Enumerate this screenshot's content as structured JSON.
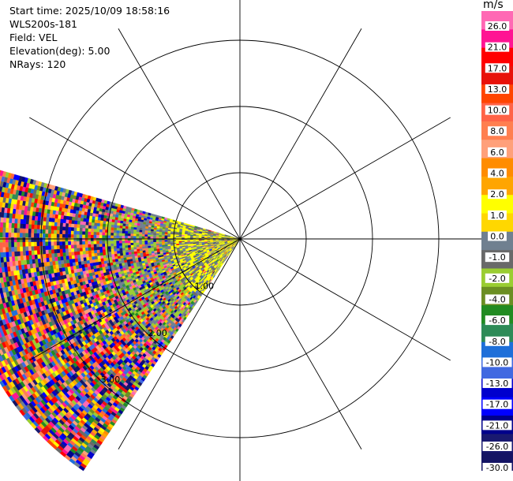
{
  "info": {
    "start_time": "Start time: 2025/10/09 18:58:16",
    "instrument": "WLS200s-181",
    "field": "Field: VEL",
    "elevation": "Elevation(deg): 5.00",
    "nrays": "NRays: 120"
  },
  "chart_data": {
    "type": "heatmap",
    "title": "",
    "projection": "polar-ppi",
    "field": "VEL",
    "units": "m/s",
    "range_ring_labels": [
      "1.00",
      "2.00",
      "3.00"
    ],
    "azimuth_spokes_deg": [
      0,
      30,
      60,
      90,
      120,
      150,
      180,
      210,
      240,
      270,
      300,
      330
    ],
    "sector_azimuth_deg": [
      214,
      286
    ],
    "colorbar": {
      "unit": "m/s",
      "tick_labels": [
        "26.0",
        "21.0",
        "17.0",
        "13.0",
        "10.0",
        "8.0",
        "6.0",
        "4.0",
        "2.0",
        "1.0",
        "0.0",
        "-1.0",
        "-2.0",
        "-4.0",
        "-6.0",
        "-8.0",
        "-10.0",
        "-13.0",
        "-17.0",
        "-21.0",
        "-26.0",
        "-30.0"
      ],
      "colors": [
        "#ff69b4",
        "#ff1493",
        "#ff0000",
        "#e8120a",
        "#ff4500",
        "#ff6347",
        "#ff7f50",
        "#ffa07a",
        "#ff8c00",
        "#ffa500",
        "#ffff00",
        "#ffd700",
        "#708090",
        "#696969",
        "#9acd32",
        "#6b8e23",
        "#228b22",
        "#2e8b57",
        "#1e6fd9",
        "#4169e1",
        "#0000cd",
        "#0000ff",
        "#00008b",
        "#191970",
        "#141464"
      ]
    }
  }
}
